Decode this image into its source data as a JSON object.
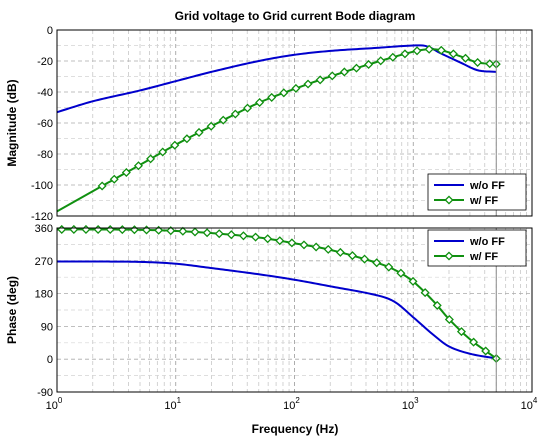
{
  "chart_data": {
    "type": "line",
    "title": "Grid voltage to Grid current Bode diagram",
    "xlabel": "Frequency  (Hz)",
    "x_scale": "log",
    "xlim": [
      1,
      10000
    ],
    "x_ticks": [
      {
        "base": "10",
        "exp": "0",
        "value": 1
      },
      {
        "base": "10",
        "exp": "1",
        "value": 10
      },
      {
        "base": "10",
        "exp": "2",
        "value": 100
      },
      {
        "base": "10",
        "exp": "3",
        "value": 1000
      },
      {
        "base": "10",
        "exp": "4",
        "value": 10000
      }
    ],
    "grid": true,
    "colors": {
      "wo_ff": "#0000cc",
      "w_ff": "#109010"
    },
    "panels": [
      {
        "ylabel": "Magnitude (dB)",
        "ylim": [
          -120,
          0
        ],
        "y_ticks": [
          "0",
          "-20",
          "-40",
          "-60",
          "-80",
          "-100",
          "-120"
        ],
        "legend": {
          "placement": "bottom-right",
          "entries": [
            "w/o FF",
            "w/ FF"
          ]
        },
        "series": [
          {
            "name": "w/o FF",
            "x": [
              1,
              2,
              5,
              10,
              20,
              50,
              100,
              200,
              500,
              1000,
              1300,
              1700,
              2500,
              3500,
              5000
            ],
            "y": [
              -53,
              -46,
              -39,
              -33,
              -27,
              -20,
              -16,
              -13.5,
              -11.5,
              -10,
              -10.5,
              -15,
              -21,
              -26,
              -27
            ]
          },
          {
            "name": "w/ FF",
            "x": [
              1,
              2,
              5,
              10,
              20,
              50,
              100,
              200,
              500,
              1000,
              1300,
              1700,
              2500,
              3500,
              5000
            ],
            "y": [
              -117,
              -104,
              -87,
              -74,
              -62,
              -47,
              -38,
              -30,
              -20.5,
              -14,
              -12.5,
              -13,
              -17,
              -21,
              -22
            ]
          }
        ]
      },
      {
        "ylabel": "Phase (deg)",
        "ylim": [
          -90,
          360
        ],
        "y_ticks": [
          "360",
          "270",
          "180",
          "90",
          "0",
          "-90"
        ],
        "legend": {
          "placement": "top-right",
          "entries": [
            "w/o FF",
            "w/ FF"
          ]
        },
        "series": [
          {
            "name": "w/o FF",
            "x": [
              1,
              2,
              5,
              10,
              20,
              50,
              100,
              200,
              500,
              700,
              1000,
              1500,
              2000,
              3000,
              5000
            ],
            "y": [
              268,
              268,
              267,
              262,
              250,
              233,
              218,
              200,
              175,
              157,
              115,
              65,
              35,
              15,
              2
            ]
          },
          {
            "name": "w/ FF",
            "x": [
              1,
              2,
              5,
              10,
              20,
              50,
              100,
              200,
              500,
              700,
              1000,
              1500,
              2000,
              3000,
              5000
            ],
            "y": [
              356,
              356,
              355,
              352,
              346,
              334,
              318,
              300,
              264,
              245,
              213,
              157,
              110,
              55,
              2
            ]
          }
        ]
      }
    ]
  }
}
